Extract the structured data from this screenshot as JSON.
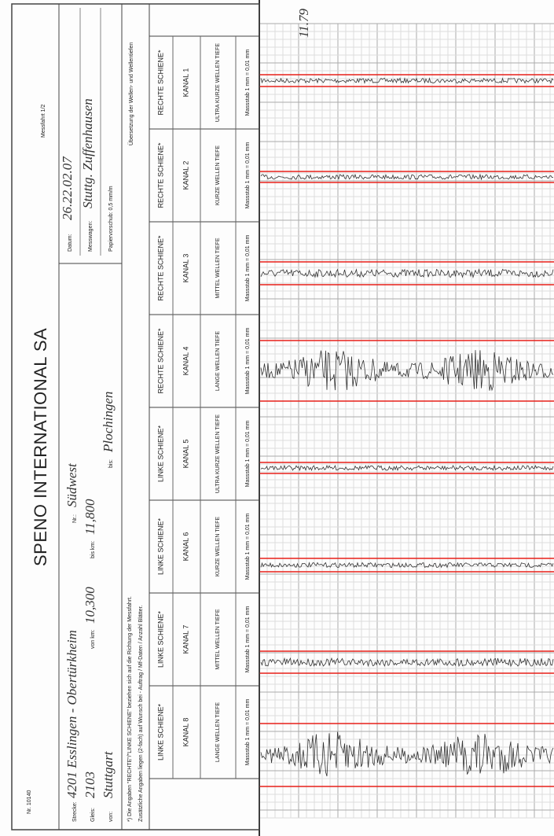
{
  "header": {
    "form_no": "Nr. 10140",
    "title": "SPENO INTERNATIONAL SA",
    "run": "Messfahrt 1/2",
    "note": "11.79"
  },
  "fields": {
    "strecke_label": "Strecke:",
    "strecke": "4201 Esslingen - Obertürkheim",
    "nr_label": "Nr.:",
    "nr": "Südwest",
    "gleis_label": "Gleis:",
    "gleis": "2103",
    "vonkm_label": "von km:",
    "vonkm": "10,300",
    "biskm_label": "bis km:",
    "biskm": "11,800",
    "von_label": "von:",
    "von": "Stuttgart",
    "bis_label": "bis:",
    "bis": "Plochingen",
    "datum_label": "Datum:",
    "datum": "26.22.02.07",
    "wagen_label": "Messwagen:",
    "wagen": "Stuttg. Zuffenhausen",
    "vorschub": "Papiervorschub: 0,5 mm/m"
  },
  "footnotes": [
    "*) Die Angaben \"RECHTE\"/\"LINKE SCHIENE\" beziehen sich auf die Richtung der Messfahrt.",
    "Zusätzliche Angaben liegen (2-fach) auf Wunsch bei - Auftrag / Mf-Daten / Anzahl Blätter."
  ],
  "legend": "Übersetzung der Wellen- und Wellentiefen",
  "channels": [
    {
      "side": "RECHTE SCHIENE*",
      "kanal": "KANAL 1",
      "wave": "ULTRA KURZE WELLEN TIEFE",
      "scale": "Massstab 1 mm = 0,01 mm"
    },
    {
      "side": "RECHTE SCHIENE*",
      "kanal": "KANAL 2",
      "wave": "KURZE WELLEN TIEFE",
      "scale": "Massstab 1 mm = 0,01 mm"
    },
    {
      "side": "RECHTE SCHIENE*",
      "kanal": "KANAL 3",
      "wave": "MITTEL WELLEN TIEFE",
      "scale": "Massstab 1 mm = 0,01 mm"
    },
    {
      "side": "RECHTE SCHIENE*",
      "kanal": "KANAL 4",
      "wave": "LANGE WELLEN TIEFE",
      "scale": "Massstab 1 mm = 0,01 mm"
    },
    {
      "side": "LINKE SCHIENE*",
      "kanal": "KANAL 5",
      "wave": "ULTRA KURZE WELLEN TIEFE",
      "scale": "Massstab 1 mm = 0,01 mm"
    },
    {
      "side": "LINKE SCHIENE*",
      "kanal": "KANAL 6",
      "wave": "KURZE WELLEN TIEFE",
      "scale": "Massstab 1 mm = 0,01 mm"
    },
    {
      "side": "LINKE SCHIENE*",
      "kanal": "KANAL 7",
      "wave": "MITTEL WELLEN TIEFE",
      "scale": "Massstab 1 mm = 0,01 mm"
    },
    {
      "side": "LINKE SCHIENE*",
      "kanal": "KANAL 8",
      "wave": "LANGE WELLEN TIEFE",
      "scale": "Massstab 1 mm = 0,01 mm"
    }
  ]
}
